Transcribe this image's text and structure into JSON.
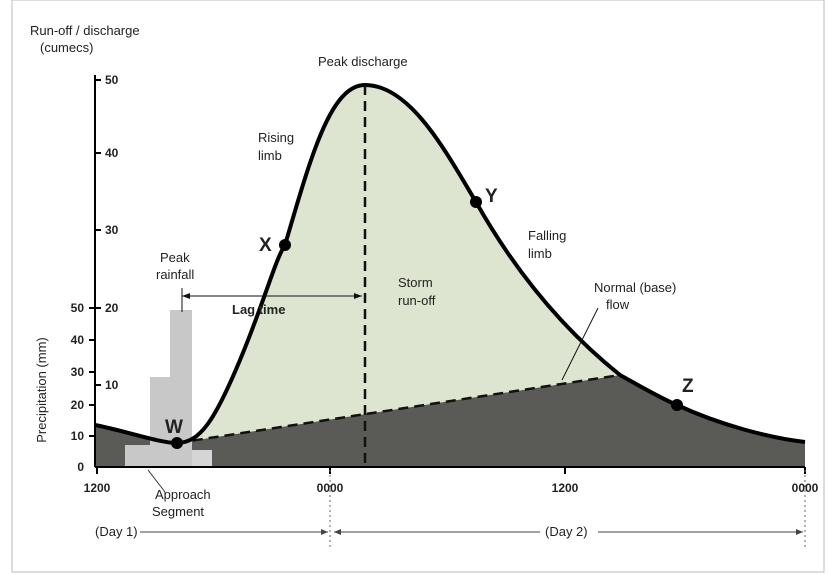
{
  "y_axis": {
    "title": [
      "Run-off / discharge",
      "(cumecs)"
    ],
    "ticks": [
      50,
      40,
      30,
      20,
      10
    ]
  },
  "precip_axis": {
    "title": "Precipitation (mm)",
    "ticks": [
      50,
      40,
      30,
      20,
      10,
      0
    ]
  },
  "x_axis": {
    "ticks": [
      "1200",
      "0000",
      "1200",
      "0000"
    ]
  },
  "labels": {
    "peak_discharge": "Peak discharge",
    "rising_limb": [
      "Rising",
      "limb"
    ],
    "peak_rainfall": [
      "Peak",
      "rainfall"
    ],
    "lag_time": "Lag time",
    "storm_runoff": [
      "Storm",
      "run-off"
    ],
    "falling_limb": [
      "Falling",
      "limb"
    ],
    "base_flow": [
      "Normal (base)",
      "flow"
    ],
    "approach": [
      "Approach",
      "Segment"
    ]
  },
  "points": [
    "W",
    "X",
    "Y",
    "Z"
  ],
  "days": [
    "(Day 1)",
    "(Day 2)"
  ]
}
